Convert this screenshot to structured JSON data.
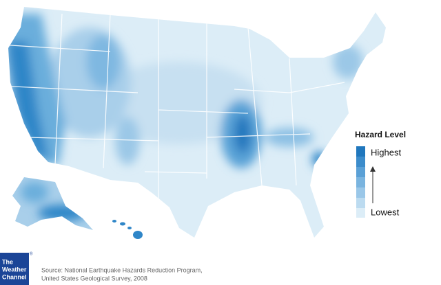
{
  "legend": {
    "title": "Hazard Level",
    "high": "Highest",
    "low": "Lowest"
  },
  "source": {
    "line1": "Source: National Earthquake Hazards Reduction Program,",
    "line2": "United States Geological Survey, 2008"
  },
  "logo": {
    "line1": "The",
    "line2": "Weather",
    "line3": "Channel",
    "mark": "®"
  }
}
